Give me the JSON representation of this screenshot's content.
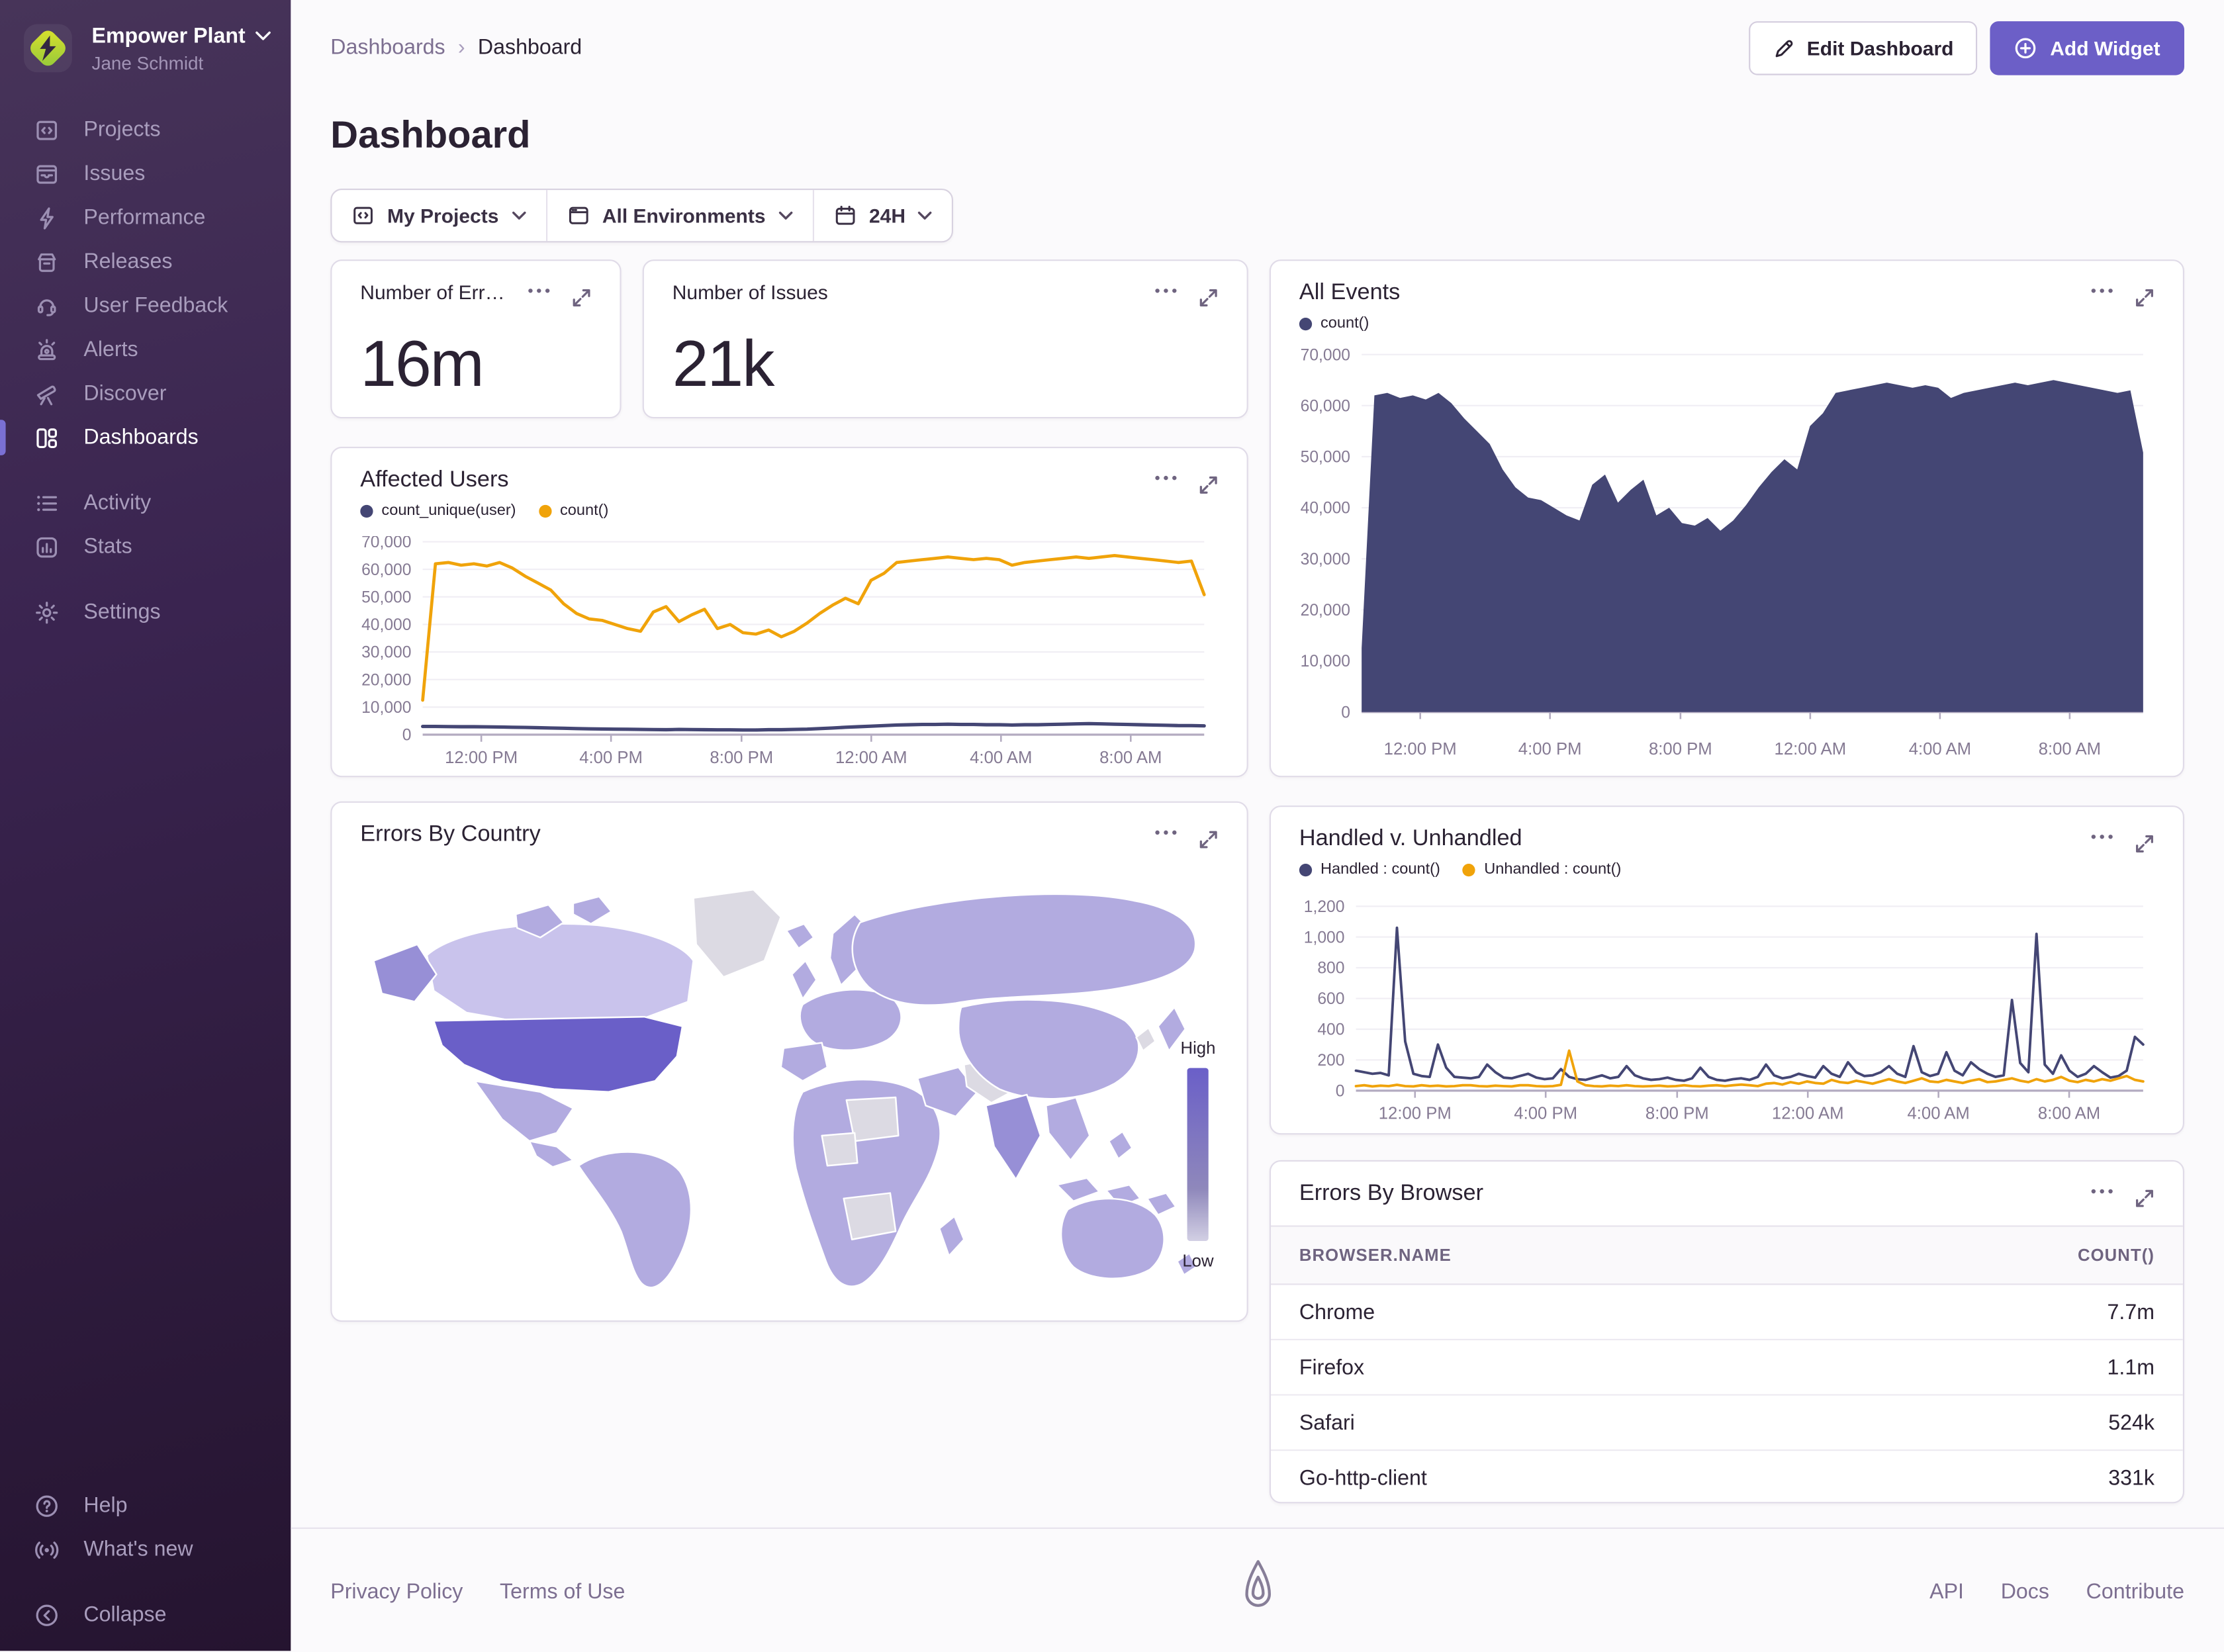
{
  "colors": {
    "accent": "#6c5fc7",
    "sidebar_active_bar": "#7a70d4",
    "chart_navy": "#444674",
    "chart_yellow": "#f0a30a",
    "text_dark": "#2b2233",
    "text_muted": "#857a93"
  },
  "sidebar": {
    "org_name": "Empower Plant",
    "user_name": "Jane Schmidt",
    "items": [
      {
        "label": "Projects"
      },
      {
        "label": "Issues"
      },
      {
        "label": "Performance"
      },
      {
        "label": "Releases"
      },
      {
        "label": "User Feedback"
      },
      {
        "label": "Alerts"
      },
      {
        "label": "Discover"
      },
      {
        "label": "Dashboards",
        "active": true
      },
      {
        "label": "Activity"
      },
      {
        "label": "Stats"
      },
      {
        "label": "Settings"
      }
    ],
    "footer_items": [
      {
        "label": "Help"
      },
      {
        "label": "What's new"
      },
      {
        "label": "Collapse"
      }
    ]
  },
  "header": {
    "breadcrumb_parent": "Dashboards",
    "breadcrumb_current": "Dashboard",
    "title": "Dashboard",
    "edit_label": "Edit Dashboard",
    "add_label": "Add Widget"
  },
  "filters": {
    "projects_label": "My Projects",
    "environments_label": "All Environments",
    "time_label": "24H"
  },
  "widgets": {
    "number_errors": {
      "title": "Number of Err…",
      "value": "16m"
    },
    "number_issues": {
      "title": "Number of Issues",
      "value": "21k"
    },
    "errors_by_browser": {
      "title": "Errors By Browser",
      "columns": [
        "BROWSER.NAME",
        "COUNT()"
      ],
      "rows": [
        [
          "Chrome",
          "7.7m"
        ],
        [
          "Firefox",
          "1.1m"
        ],
        [
          "Safari",
          "524k"
        ],
        [
          "Go-http-client",
          "331k"
        ]
      ]
    }
  },
  "chart_data": [
    {
      "dom_id": "chart-all-events",
      "type": "area",
      "title": "All Events",
      "ylim": [
        0,
        70000
      ],
      "yticks": [
        0,
        10000,
        20000,
        30000,
        40000,
        50000,
        60000,
        70000
      ],
      "xticks": [
        {
          "label": "12:00 PM",
          "pos": 0.075
        },
        {
          "label": "4:00 PM",
          "pos": 0.241
        },
        {
          "label": "8:00 PM",
          "pos": 0.408
        },
        {
          "label": "12:00 AM",
          "pos": 0.574
        },
        {
          "label": "4:00 AM",
          "pos": 0.74
        },
        {
          "label": "8:00 AM",
          "pos": 0.906
        }
      ],
      "series": [
        {
          "name": "count()",
          "color": "#444674",
          "area": true,
          "values": [
            12500,
            62000,
            62500,
            61500,
            62000,
            61200,
            62500,
            60500,
            57500,
            55000,
            52500,
            47500,
            44000,
            42000,
            41500,
            40000,
            38500,
            37500,
            44500,
            46500,
            41000,
            43500,
            45500,
            38500,
            40000,
            37000,
            36500,
            38000,
            35500,
            37500,
            40500,
            44000,
            47000,
            49500,
            47500,
            56000,
            58500,
            62500,
            63000,
            63500,
            64000,
            64500,
            64000,
            63500,
            64000,
            63500,
            61500,
            62500,
            63000,
            63500,
            64000,
            64500,
            64000,
            64500,
            65000,
            64500,
            64000,
            63500,
            63000,
            62500,
            63000,
            50800
          ]
        }
      ]
    },
    {
      "dom_id": "chart-affected",
      "type": "line",
      "title": "Affected Users",
      "ylim": [
        0,
        70000
      ],
      "yticks": [
        0,
        10000,
        20000,
        30000,
        40000,
        50000,
        60000,
        70000
      ],
      "xticks": [
        {
          "label": "12:00 PM",
          "pos": 0.075
        },
        {
          "label": "4:00 PM",
          "pos": 0.241
        },
        {
          "label": "8:00 PM",
          "pos": 0.408
        },
        {
          "label": "12:00 AM",
          "pos": 0.574
        },
        {
          "label": "4:00 AM",
          "pos": 0.74
        },
        {
          "label": "8:00 AM",
          "pos": 0.906
        }
      ],
      "series": [
        {
          "name": "count_unique(user)",
          "color": "#444674",
          "width": 2.4,
          "values": [
            3000,
            3000,
            2950,
            2900,
            2900,
            2850,
            2800,
            2700,
            2600,
            2500,
            2400,
            2300,
            2200,
            2100,
            2050,
            2000,
            1950,
            1900,
            1850,
            1800,
            1900,
            1850,
            1800,
            1750,
            1750,
            1700,
            1700,
            1800,
            1800,
            1900,
            2000,
            2200,
            2400,
            2700,
            2900,
            3100,
            3300,
            3500,
            3600,
            3700,
            3700,
            3800,
            3700,
            3700,
            3600,
            3600,
            3500,
            3600,
            3600,
            3700,
            3800,
            3900,
            4000,
            3900,
            3800,
            3700,
            3600,
            3500,
            3400,
            3300,
            3300,
            3200
          ]
        },
        {
          "name": "count()",
          "color": "#f0a30a",
          "width": 2.2,
          "values": [
            12500,
            62000,
            62500,
            61500,
            62000,
            61200,
            62500,
            60500,
            57500,
            55000,
            52500,
            47500,
            44000,
            42000,
            41500,
            40000,
            38500,
            37500,
            44500,
            46500,
            41000,
            43500,
            45500,
            38500,
            40000,
            37000,
            36500,
            38000,
            35500,
            37500,
            40500,
            44000,
            47000,
            49500,
            47500,
            56000,
            58500,
            62500,
            63000,
            63500,
            64000,
            64500,
            64000,
            63500,
            64000,
            63500,
            61500,
            62500,
            63000,
            63500,
            64000,
            64500,
            64000,
            64500,
            65000,
            64500,
            64000,
            63500,
            63000,
            62500,
            63000,
            50800
          ]
        }
      ]
    },
    {
      "dom_id": "chart-handled",
      "type": "line",
      "title": "Handled v. Unhandled",
      "ylim": [
        0,
        1200
      ],
      "yticks": [
        0,
        200,
        400,
        600,
        800,
        1000,
        1200
      ],
      "xticks": [
        {
          "label": "12:00 PM",
          "pos": 0.075
        },
        {
          "label": "4:00 PM",
          "pos": 0.241
        },
        {
          "label": "8:00 PM",
          "pos": 0.408
        },
        {
          "label": "12:00 AM",
          "pos": 0.574
        },
        {
          "label": "4:00 AM",
          "pos": 0.74
        },
        {
          "label": "8:00 AM",
          "pos": 0.906
        }
      ],
      "series": [
        {
          "name": "Handled : count()",
          "color": "#444674",
          "width": 1.8,
          "values": [
            130,
            120,
            110,
            115,
            100,
            1060,
            320,
            110,
            95,
            90,
            300,
            150,
            90,
            85,
            80,
            90,
            170,
            120,
            85,
            80,
            95,
            110,
            85,
            75,
            80,
            140,
            90,
            75,
            70,
            85,
            100,
            80,
            90,
            160,
            100,
            80,
            70,
            75,
            85,
            70,
            65,
            80,
            150,
            90,
            70,
            65,
            75,
            80,
            70,
            90,
            170,
            100,
            80,
            90,
            110,
            95,
            85,
            160,
            110,
            90,
            185,
            120,
            95,
            100,
            120,
            160,
            110,
            90,
            290,
            120,
            95,
            110,
            250,
            130,
            100,
            185,
            140,
            110,
            90,
            100,
            590,
            180,
            120,
            1020,
            170,
            110,
            230,
            130,
            90,
            110,
            160,
            120,
            85,
            95,
            130,
            350,
            300
          ]
        },
        {
          "name": "Unhandled : count()",
          "color": "#f0a30a",
          "width": 1.8,
          "values": [
            30,
            35,
            28,
            32,
            30,
            38,
            30,
            28,
            35,
            30,
            32,
            28,
            30,
            35,
            35,
            30,
            28,
            32,
            30,
            28,
            35,
            35,
            30,
            28,
            30,
            38,
            260,
            60,
            35,
            30,
            28,
            32,
            30,
            35,
            30,
            28,
            30,
            32,
            28,
            30,
            35,
            30,
            28,
            32,
            35,
            30,
            35,
            40,
            35,
            30,
            45,
            50,
            40,
            55,
            45,
            60,
            50,
            45,
            70,
            55,
            50,
            65,
            55,
            45,
            60,
            75,
            60,
            50,
            65,
            80,
            60,
            55,
            70,
            60,
            50,
            65,
            75,
            55,
            60,
            70,
            80,
            65,
            55,
            75,
            60,
            70,
            90,
            65,
            55,
            70,
            60,
            75,
            65,
            80,
            95,
            70,
            60
          ]
        }
      ]
    },
    {
      "dom_id": "map-errors-by-country",
      "type": "choropleth",
      "title": "Errors By Country",
      "legend_high": "High",
      "legend_low": "Low",
      "palette": {
        "high": "#6a5fc8",
        "mid_high": "#978fd6",
        "mid": "#b2abe0",
        "low": "#c9c3ec",
        "no_data": "#dcdae3"
      },
      "regions": [
        {
          "name": "United States",
          "level": "high"
        },
        {
          "name": "Alaska (US)",
          "level": "mid_high"
        },
        {
          "name": "Canada",
          "level": "low"
        },
        {
          "name": "Greenland",
          "level": "no_data"
        },
        {
          "name": "Brazil",
          "level": "mid"
        },
        {
          "name": "Russia",
          "level": "mid"
        },
        {
          "name": "India",
          "level": "mid_high"
        },
        {
          "name": "Australia",
          "level": "mid"
        },
        {
          "name": "Libya",
          "level": "no_data"
        },
        {
          "name": "Iran",
          "level": "no_data"
        },
        {
          "name": "DR Congo",
          "level": "no_data"
        },
        {
          "name": "Niger",
          "level": "no_data"
        }
      ]
    }
  ],
  "footer": {
    "privacy": "Privacy Policy",
    "terms": "Terms of Use",
    "api": "API",
    "docs": "Docs",
    "contribute": "Contribute"
  }
}
